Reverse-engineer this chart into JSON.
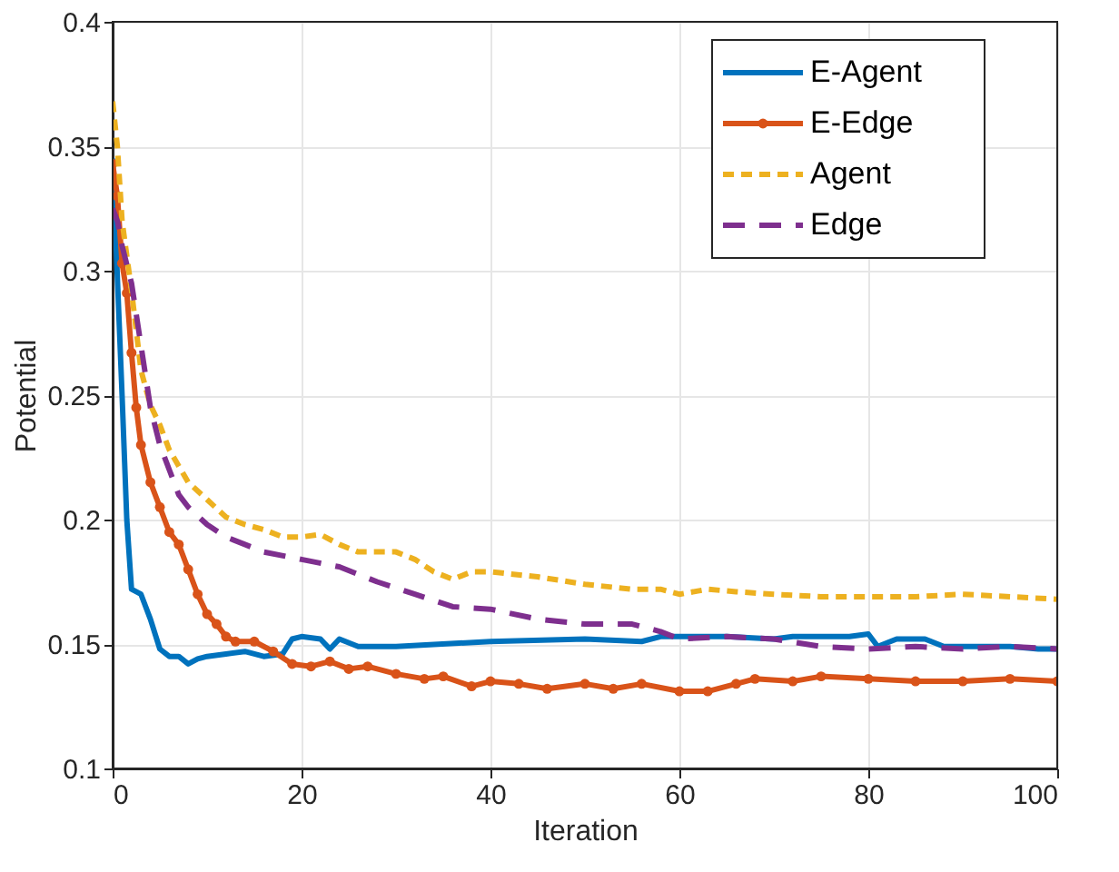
{
  "chart_data": {
    "type": "line",
    "xlabel": "Iteration",
    "ylabel": "Potential",
    "xlim": [
      0,
      100
    ],
    "ylim": [
      0.1,
      0.4
    ],
    "xticks": [
      0,
      20,
      40,
      60,
      80,
      100
    ],
    "yticks": [
      0.1,
      0.15,
      0.2,
      0.25,
      0.3,
      0.35,
      0.4
    ],
    "grid": true,
    "legend": "top right",
    "series": [
      {
        "name": "E-Agent",
        "color": "#0072bd",
        "line_style": "solid",
        "marker": "none",
        "x": [
          0,
          1,
          1.5,
          2,
          3,
          4,
          5,
          6,
          7,
          8,
          9,
          10,
          12,
          14,
          16,
          18,
          19,
          20,
          22,
          23,
          24,
          26,
          30,
          40,
          50,
          56,
          58,
          65,
          70,
          72,
          78,
          80,
          81,
          83,
          86,
          88,
          95,
          98,
          100
        ],
        "values": [
          0.345,
          0.25,
          0.2,
          0.172,
          0.17,
          0.16,
          0.148,
          0.145,
          0.145,
          0.142,
          0.144,
          0.145,
          0.146,
          0.147,
          0.145,
          0.146,
          0.152,
          0.153,
          0.152,
          0.148,
          0.152,
          0.149,
          0.149,
          0.151,
          0.152,
          0.151,
          0.153,
          0.153,
          0.152,
          0.153,
          0.153,
          0.154,
          0.149,
          0.152,
          0.152,
          0.149,
          0.149,
          0.148,
          0.148
        ]
      },
      {
        "name": "E-Edge",
        "color": "#d95319",
        "line_style": "solid",
        "marker": "circle",
        "x": [
          0,
          0.5,
          1,
          1.5,
          2,
          2.5,
          3,
          4,
          5,
          6,
          7,
          8,
          9,
          10,
          11,
          12,
          13,
          15,
          17,
          19,
          21,
          23,
          25,
          27,
          30,
          33,
          35,
          38,
          40,
          43,
          46,
          50,
          53,
          56,
          60,
          63,
          66,
          68,
          72,
          75,
          80,
          85,
          90,
          95,
          100
        ],
        "values": [
          0.343,
          0.33,
          0.303,
          0.291,
          0.267,
          0.245,
          0.23,
          0.215,
          0.205,
          0.195,
          0.19,
          0.18,
          0.17,
          0.162,
          0.158,
          0.153,
          0.151,
          0.151,
          0.147,
          0.142,
          0.141,
          0.143,
          0.14,
          0.141,
          0.138,
          0.136,
          0.137,
          0.133,
          0.135,
          0.134,
          0.132,
          0.134,
          0.132,
          0.134,
          0.131,
          0.131,
          0.134,
          0.136,
          0.135,
          0.137,
          0.136,
          0.135,
          0.135,
          0.136,
          0.135
        ]
      },
      {
        "name": "Agent",
        "color": "#edb120",
        "line_style": "dotted",
        "marker": "none",
        "x": [
          0,
          0.5,
          1,
          2,
          3,
          4,
          5,
          6,
          8,
          10,
          12,
          14,
          16,
          18,
          20,
          22,
          24,
          26,
          30,
          32,
          34,
          36,
          38,
          40,
          45,
          50,
          55,
          58,
          60,
          63,
          66,
          70,
          75,
          80,
          85,
          90,
          95,
          100
        ],
        "values": [
          0.368,
          0.35,
          0.32,
          0.292,
          0.26,
          0.246,
          0.238,
          0.228,
          0.215,
          0.208,
          0.201,
          0.198,
          0.196,
          0.193,
          0.193,
          0.194,
          0.19,
          0.187,
          0.187,
          0.184,
          0.179,
          0.176,
          0.179,
          0.179,
          0.177,
          0.174,
          0.172,
          0.172,
          0.17,
          0.172,
          0.171,
          0.17,
          0.169,
          0.169,
          0.169,
          0.17,
          0.169,
          0.168
        ]
      },
      {
        "name": "Edge",
        "color": "#7e2f8e",
        "line_style": "dashed",
        "marker": "none",
        "x": [
          0,
          0.5,
          1,
          2,
          3,
          4,
          5,
          6,
          7,
          8,
          10,
          12,
          14,
          16,
          20,
          24,
          28,
          32,
          36,
          40,
          45,
          50,
          55,
          58,
          60,
          65,
          70,
          75,
          80,
          85,
          90,
          95,
          100
        ],
        "values": [
          0.325,
          0.32,
          0.31,
          0.295,
          0.27,
          0.245,
          0.23,
          0.22,
          0.21,
          0.205,
          0.198,
          0.193,
          0.19,
          0.187,
          0.184,
          0.181,
          0.175,
          0.17,
          0.165,
          0.164,
          0.16,
          0.158,
          0.158,
          0.155,
          0.152,
          0.153,
          0.152,
          0.149,
          0.148,
          0.149,
          0.148,
          0.149,
          0.148
        ]
      }
    ]
  }
}
